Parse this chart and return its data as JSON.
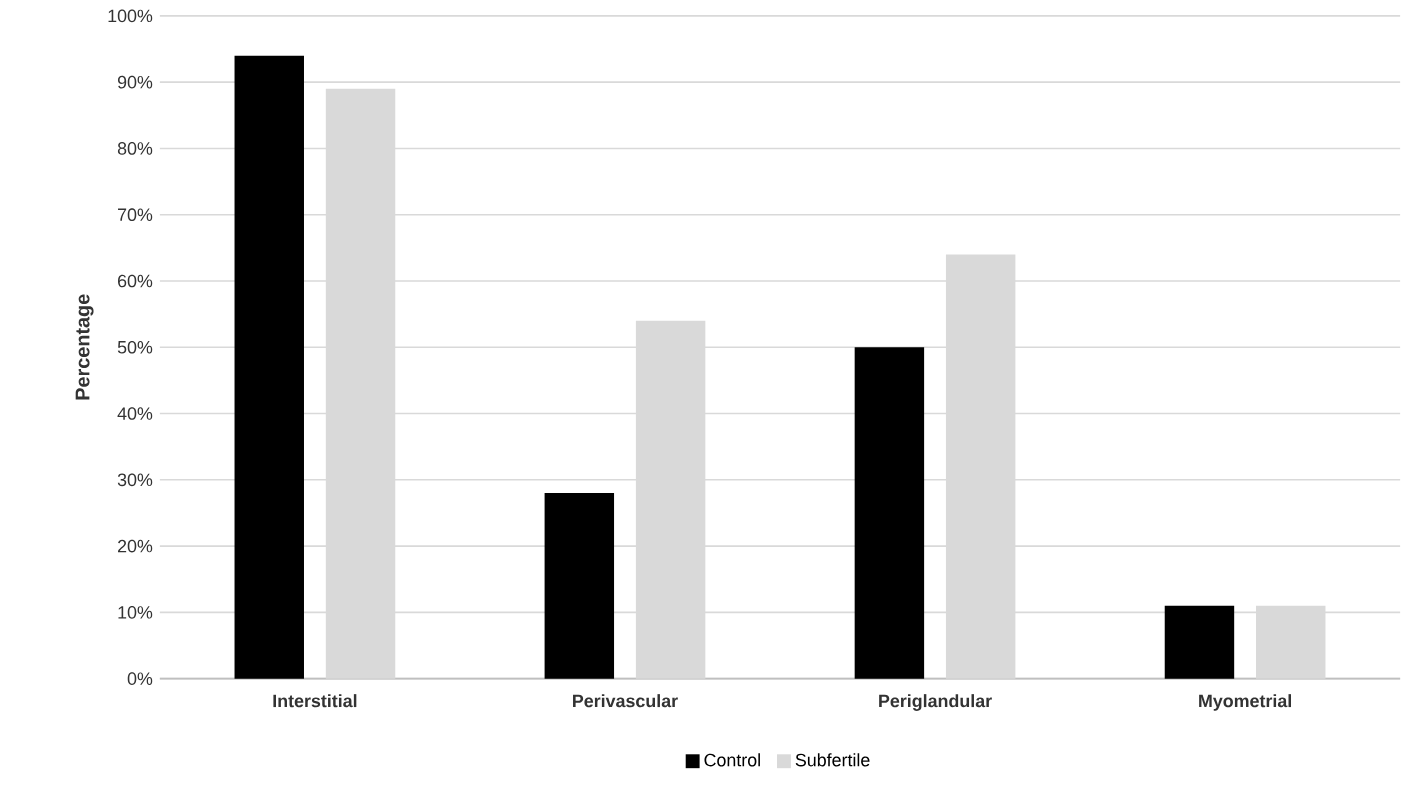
{
  "chart_data": {
    "type": "bar",
    "ylabel": "Percentage",
    "categories": [
      "Interstitial",
      "Perivascular",
      "Periglandular",
      "Myometrial"
    ],
    "series": [
      {
        "name": "Control",
        "color": "#000000",
        "values": [
          94,
          28,
          50,
          11
        ]
      },
      {
        "name": "Subfertile",
        "color": "#d9d9d9",
        "values": [
          89,
          54,
          64,
          11
        ]
      }
    ],
    "ylim": [
      0,
      100
    ],
    "yticks": [
      {
        "value": 0,
        "label": "0%"
      },
      {
        "value": 10,
        "label": "10%"
      },
      {
        "value": 20,
        "label": "20%"
      },
      {
        "value": 30,
        "label": "30%"
      },
      {
        "value": 40,
        "label": "40%"
      },
      {
        "value": 50,
        "label": "50%"
      },
      {
        "value": 60,
        "label": "60%"
      },
      {
        "value": 70,
        "label": "70%"
      },
      {
        "value": 80,
        "label": "80%"
      },
      {
        "value": 90,
        "label": "90%"
      },
      {
        "value": 100,
        "label": "100%"
      }
    ],
    "grid": "y",
    "legend": "bottom"
  }
}
